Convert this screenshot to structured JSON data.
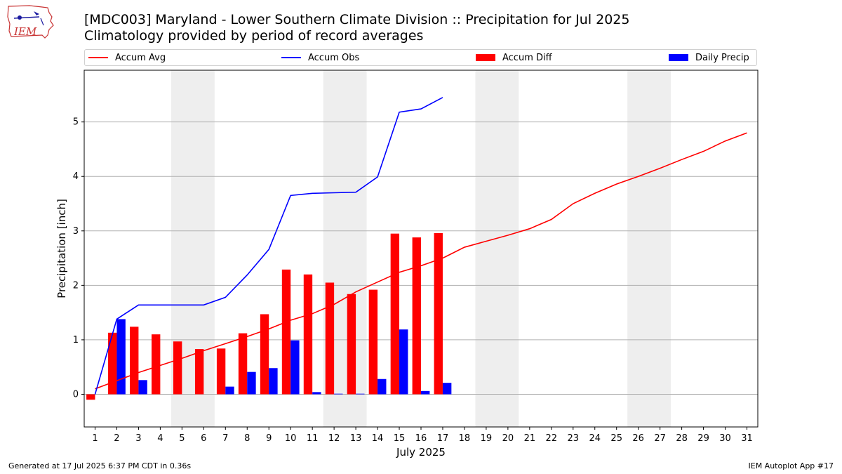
{
  "header": {
    "title_line1": "[MDC003] Maryland - Lower Southern Climate Division :: Precipitation for Jul 2025",
    "title_line2": "Climatology provided by period of record averages",
    "logo_text": "IEM"
  },
  "legend": {
    "accum_avg": "Accum Avg",
    "accum_obs": "Accum Obs",
    "accum_diff": "Accum Diff",
    "daily_precip": "Daily Precip"
  },
  "footer": {
    "generated": "Generated at 17 Jul 2025 6:37 PM CDT in 0.36s",
    "app": "IEM Autoplot App #17"
  },
  "colors": {
    "accum_avg": "#ff0000",
    "accum_obs": "#0000ff",
    "accum_diff": "#ff0000",
    "daily_precip": "#0000ff",
    "weekend_shade": "#eeeeee",
    "grid": "#b0b0b0"
  },
  "chart_data": {
    "type": "bar",
    "xlabel": "July 2025",
    "ylabel": "Precipitation [inch]",
    "xlim": [
      0.5,
      31.5
    ],
    "ylim": [
      -0.6,
      5.95
    ],
    "yticks": [
      0,
      1,
      2,
      3,
      4,
      5
    ],
    "x": [
      1,
      2,
      3,
      4,
      5,
      6,
      7,
      8,
      9,
      10,
      11,
      12,
      13,
      14,
      15,
      16,
      17,
      18,
      19,
      20,
      21,
      22,
      23,
      24,
      25,
      26,
      27,
      28,
      29,
      30,
      31
    ],
    "shaded_weekends": [
      [
        5,
        6
      ],
      [
        12,
        13
      ],
      [
        19,
        20
      ],
      [
        26,
        27
      ]
    ],
    "grid": true,
    "legend_position": "top",
    "series": [
      {
        "name": "Accum Avg",
        "type": "line",
        "x": [
          1,
          2,
          3,
          4,
          5,
          6,
          7,
          8,
          9,
          10,
          11,
          12,
          13,
          14,
          15,
          16,
          17,
          18,
          19,
          20,
          21,
          22,
          23,
          24,
          25,
          26,
          27,
          28,
          29,
          30,
          31
        ],
        "values": [
          0.1,
          0.25,
          0.4,
          0.53,
          0.66,
          0.8,
          0.93,
          1.06,
          1.2,
          1.36,
          1.48,
          1.65,
          1.88,
          2.06,
          2.24,
          2.36,
          2.5,
          2.7,
          2.81,
          2.92,
          3.04,
          3.21,
          3.5,
          3.69,
          3.86,
          4.0,
          4.15,
          4.31,
          4.46,
          4.65,
          4.8
        ]
      },
      {
        "name": "Accum Obs",
        "type": "line",
        "x": [
          1,
          2,
          3,
          4,
          5,
          6,
          7,
          8,
          9,
          10,
          11,
          12,
          13,
          14,
          15,
          16,
          17
        ],
        "values": [
          0.0,
          1.38,
          1.64,
          1.64,
          1.64,
          1.64,
          1.78,
          2.19,
          2.66,
          3.65,
          3.69,
          3.7,
          3.71,
          3.99,
          5.18,
          5.24,
          5.45
        ]
      },
      {
        "name": "Accum Diff",
        "type": "bar",
        "x": [
          1,
          2,
          3,
          4,
          5,
          6,
          7,
          8,
          9,
          10,
          11,
          12,
          13,
          14,
          15,
          16,
          17
        ],
        "values": [
          -0.1,
          1.13,
          1.24,
          1.1,
          0.97,
          0.83,
          0.84,
          1.12,
          1.47,
          2.29,
          2.2,
          2.05,
          1.84,
          1.92,
          2.95,
          2.88,
          2.96
        ]
      },
      {
        "name": "Daily Precip",
        "type": "bar",
        "x": [
          1,
          2,
          3,
          4,
          5,
          6,
          7,
          8,
          9,
          10,
          11,
          12,
          13,
          14,
          15,
          16,
          17
        ],
        "values": [
          0.0,
          1.38,
          0.26,
          0.0,
          0.0,
          0.0,
          0.14,
          0.41,
          0.48,
          0.99,
          0.04,
          0.01,
          0.01,
          0.28,
          1.19,
          0.06,
          0.21
        ]
      }
    ]
  }
}
